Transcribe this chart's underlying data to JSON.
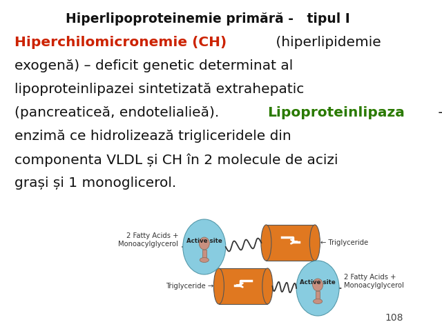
{
  "title": "Hiperlipoproteinemie primără -   tipul I",
  "page_number": "108",
  "background_color": "#ffffff",
  "title_color": "#111111",
  "red_color": "#cc2200",
  "green_color": "#2a7a00",
  "dark_color": "#111111",
  "orange_color": "#e07820",
  "blue_color": "#88cce0",
  "pink_color": "#c89080",
  "label_top_left": "2 Fatty Acids +\nMonoacylglycerol",
  "label_top_right": "← Triglyceride",
  "label_bottom_left": "Triglyceride →",
  "label_bottom_right": "2 Fatty Acids +\nMonoacylglycerol",
  "active_site": "Active site",
  "lines": [
    {
      "segments": [
        {
          "text": "Hiperchilomicronemie (CH)",
          "color": "#cc2200",
          "bold": true
        },
        {
          "text": " (hiperlipidemie",
          "color": "#111111",
          "bold": false
        }
      ]
    },
    {
      "segments": [
        {
          "text": "exogenă) – deficit genetic determinat al",
          "color": "#111111",
          "bold": false
        }
      ]
    },
    {
      "segments": [
        {
          "text": "lipoproteinlipazei sintetizată extrahepatic",
          "color": "#111111",
          "bold": false
        }
      ]
    },
    {
      "segments": [
        {
          "text": "(pancreaticeă, endotelialieă). ",
          "color": "#111111",
          "bold": false
        },
        {
          "text": "Lipoproteinlipaza",
          "color": "#2a7a00",
          "bold": true
        },
        {
          "text": " –",
          "color": "#111111",
          "bold": false
        }
      ]
    },
    {
      "segments": [
        {
          "text": "enzimă ce hidrolizează trigliceridele din",
          "color": "#111111",
          "bold": false
        }
      ]
    },
    {
      "segments": [
        {
          "text": "componenta VLDL și CH în 2 molecule de acizi",
          "color": "#111111",
          "bold": false
        }
      ]
    },
    {
      "segments": [
        {
          "text": "grași și 1 monoglicerol.",
          "color": "#111111",
          "bold": false
        }
      ]
    }
  ]
}
